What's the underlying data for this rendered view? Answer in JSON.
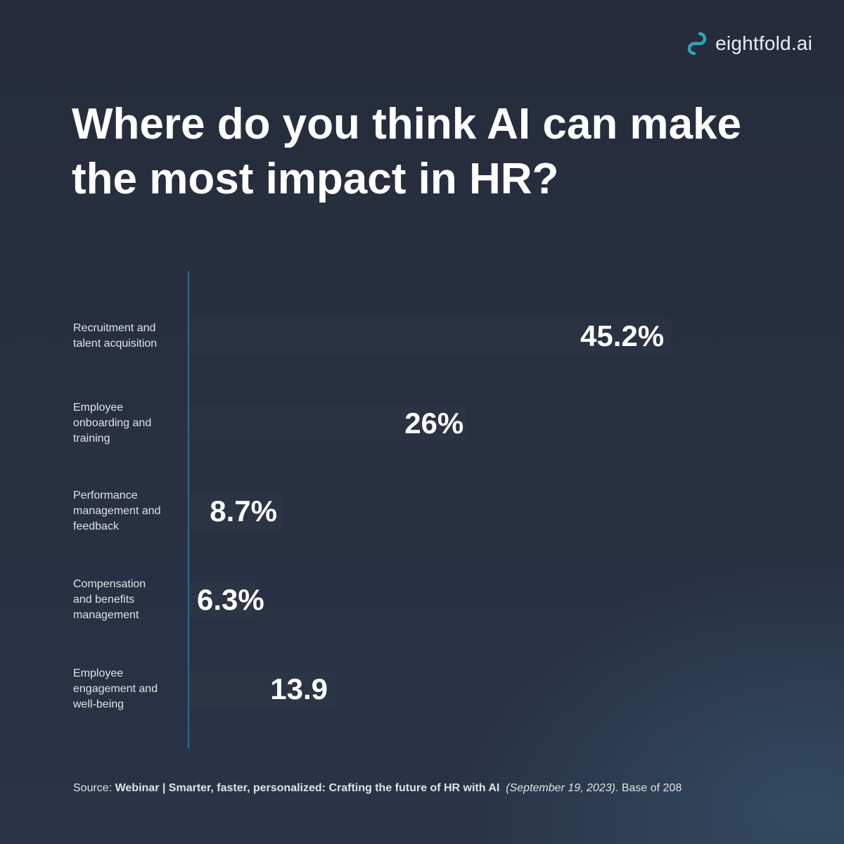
{
  "brand": {
    "name": "eightfold.ai",
    "logo_icon": "infinity-loop-icon",
    "accent": "#2fa3b8"
  },
  "title": "Where do you think AI can make the most impact in HR?",
  "chart_data": {
    "type": "bar",
    "orientation": "horizontal",
    "categories": [
      "Recruitment and talent acquisition",
      "Employee onboarding and training",
      "Performance management and feedback",
      "Compensation and benefits management",
      "Employee engagement and well-being"
    ],
    "values": [
      45.2,
      26,
      8.7,
      6.3,
      13.9
    ],
    "value_labels": [
      "45.2%",
      "26%",
      "8.7%",
      "6.3%",
      "13.9"
    ],
    "category_label_lines": [
      [
        "Recruitment and",
        "talent acquisition"
      ],
      [
        "Employee",
        "onboarding and",
        "training"
      ],
      [
        "Performance",
        "management and",
        "feedback"
      ],
      [
        "Compensation",
        "and benefits",
        "management"
      ],
      [
        "Employee",
        "engagement and",
        "well-being"
      ]
    ],
    "title": "Where do you think AI can make the most impact in HR?",
    "xlabel": "",
    "ylabel": "",
    "xlim": [
      0,
      50
    ],
    "grid": false,
    "legend": "none",
    "colors": {
      "axis": "#2f6a8a",
      "text": "#ffffff",
      "background": "#262c3b"
    }
  },
  "source": {
    "prefix": "Source: ",
    "bold": "Webinar | Smarter, faster, personalized: Crafting the future of HR with AI",
    "italic": "(September 19, 2023)",
    "suffix": ". Base of 208"
  }
}
